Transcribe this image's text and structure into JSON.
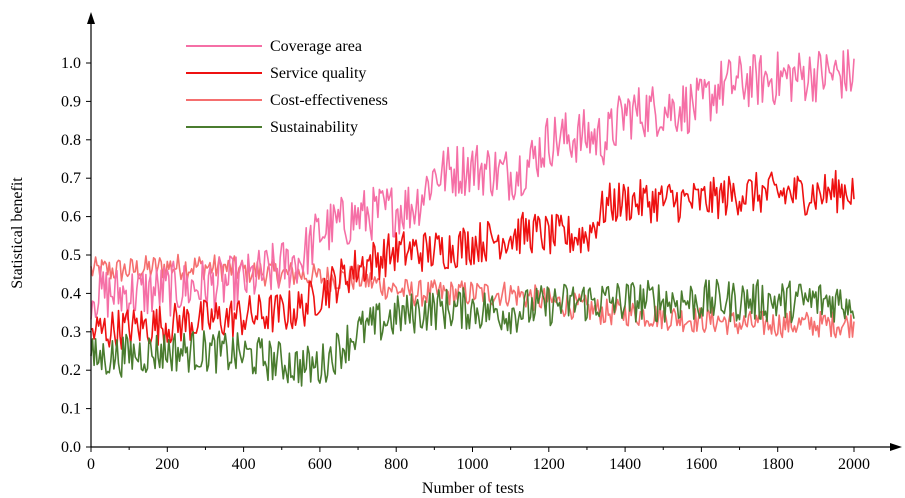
{
  "chart_data": {
    "type": "line",
    "title": "",
    "xlabel": "Number of tests",
    "ylabel": "Statistical benefit",
    "xlim": [
      0,
      2100
    ],
    "ylim": [
      0,
      1.1
    ],
    "x_ticks": [
      0,
      200,
      400,
      600,
      800,
      1000,
      1200,
      1400,
      1600,
      1800,
      2000
    ],
    "x_tick_labels": [
      "0",
      "200",
      "400",
      "600",
      "800",
      "1000",
      "1200",
      "1400",
      "1600",
      "1800",
      "2000"
    ],
    "y_ticks": [
      0.0,
      0.1,
      0.2,
      0.3,
      0.4,
      0.5,
      0.6,
      0.7,
      0.8,
      0.9,
      1.0
    ],
    "y_tick_labels": [
      "0.0",
      "0.1",
      "0.2",
      "0.3",
      "0.4",
      "0.5",
      "0.6",
      "0.7",
      "0.8",
      "0.9",
      "1.0"
    ],
    "grid": false,
    "legend_position": "top-left",
    "x": [
      0,
      100,
      200,
      300,
      400,
      500,
      550,
      600,
      700,
      800,
      850,
      900,
      1000,
      1100,
      1150,
      1200,
      1300,
      1350,
      1400,
      1500,
      1600,
      1650,
      1700,
      1800,
      1900,
      2000
    ],
    "series": [
      {
        "name": "Coverage area",
        "color": "#f56fa6",
        "values": [
          0.4,
          0.4,
          0.41,
          0.42,
          0.43,
          0.47,
          0.49,
          0.56,
          0.6,
          0.62,
          0.63,
          0.71,
          0.73,
          0.71,
          0.74,
          0.8,
          0.81,
          0.8,
          0.87,
          0.88,
          0.89,
          0.94,
          0.95,
          0.96,
          0.97,
          0.97
        ]
      },
      {
        "name": "Service quality",
        "color": "#ee1111",
        "values": [
          0.3,
          0.31,
          0.32,
          0.33,
          0.34,
          0.35,
          0.36,
          0.4,
          0.47,
          0.51,
          0.51,
          0.51,
          0.53,
          0.55,
          0.56,
          0.55,
          0.55,
          0.63,
          0.64,
          0.64,
          0.64,
          0.65,
          0.66,
          0.66,
          0.66,
          0.67
        ]
      },
      {
        "name": "Cost-effectiveness",
        "color": "#f56f6f",
        "values": [
          0.46,
          0.46,
          0.47,
          0.47,
          0.46,
          0.45,
          0.45,
          0.44,
          0.44,
          0.41,
          0.4,
          0.4,
          0.4,
          0.4,
          0.39,
          0.38,
          0.36,
          0.35,
          0.35,
          0.34,
          0.33,
          0.33,
          0.32,
          0.32,
          0.32,
          0.32
        ]
      },
      {
        "name": "Sustainability",
        "color": "#4a7c2f",
        "values": [
          0.23,
          0.24,
          0.25,
          0.25,
          0.24,
          0.22,
          0.21,
          0.21,
          0.3,
          0.34,
          0.35,
          0.36,
          0.36,
          0.35,
          0.36,
          0.37,
          0.38,
          0.38,
          0.38,
          0.38,
          0.38,
          0.38,
          0.38,
          0.38,
          0.38,
          0.38
        ]
      }
    ]
  }
}
